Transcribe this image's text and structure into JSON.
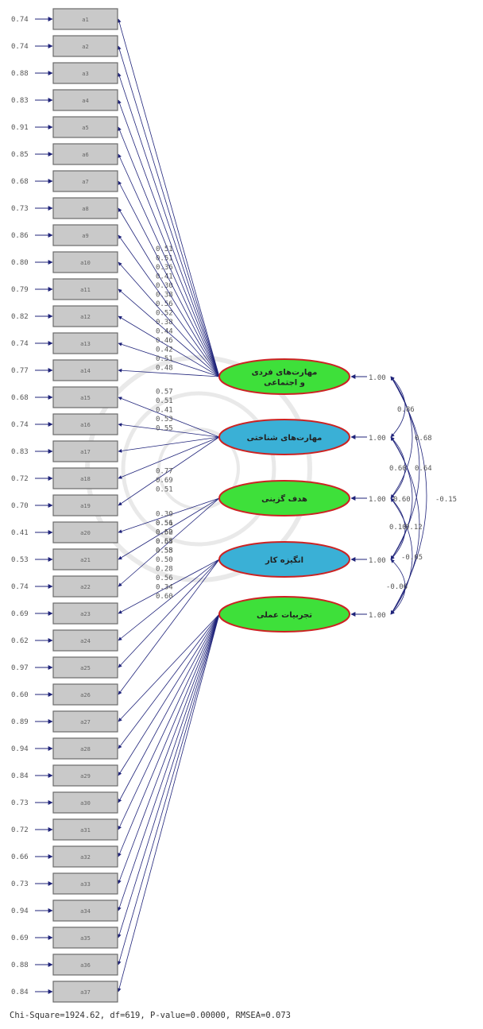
{
  "indicators": [
    {
      "label": "a1",
      "error": "0.74"
    },
    {
      "label": "a2",
      "error": "0.74"
    },
    {
      "label": "a3",
      "error": "0.88"
    },
    {
      "label": "a4",
      "error": "0.83"
    },
    {
      "label": "a5",
      "error": "0.91"
    },
    {
      "label": "a6",
      "error": "0.85"
    },
    {
      "label": "a7",
      "error": "0.68"
    },
    {
      "label": "a8",
      "error": "0.73"
    },
    {
      "label": "a9",
      "error": "0.86"
    },
    {
      "label": "a10",
      "error": "0.80"
    },
    {
      "label": "a11",
      "error": "0.79"
    },
    {
      "label": "a12",
      "error": "0.82"
    },
    {
      "label": "a13",
      "error": "0.74"
    },
    {
      "label": "a14",
      "error": "0.77"
    },
    {
      "label": "a15",
      "error": "0.68"
    },
    {
      "label": "a16",
      "error": "0.74"
    },
    {
      "label": "a17",
      "error": "0.83"
    },
    {
      "label": "a18",
      "error": "0.72"
    },
    {
      "label": "a19",
      "error": "0.70"
    },
    {
      "label": "a20",
      "error": "0.41"
    },
    {
      "label": "a21",
      "error": "0.53"
    },
    {
      "label": "a22",
      "error": "0.74"
    },
    {
      "label": "a23",
      "error": "0.69"
    },
    {
      "label": "a24",
      "error": "0.62"
    },
    {
      "label": "a25",
      "error": "0.97"
    },
    {
      "label": "a26",
      "error": "0.60"
    },
    {
      "label": "a27",
      "error": "0.89"
    },
    {
      "label": "a28",
      "error": "0.94"
    },
    {
      "label": "a29",
      "error": "0.84"
    },
    {
      "label": "a30",
      "error": "0.73"
    },
    {
      "label": "a31",
      "error": "0.72"
    },
    {
      "label": "a32",
      "error": "0.66"
    },
    {
      "label": "a33",
      "error": "0.73"
    },
    {
      "label": "a34",
      "error": "0.94"
    },
    {
      "label": "a35",
      "error": "0.69"
    },
    {
      "label": "a36",
      "error": "0.88"
    },
    {
      "label": "a37",
      "error": "0.84"
    }
  ],
  "factors": [
    {
      "name": "مهارت‌های فردی و اجتماعی",
      "lines": [
        "مهارت‌های فردی",
        "و اجتماعی"
      ],
      "color": "#3ee03a",
      "variance": "1.00",
      "items": [
        0,
        1,
        2,
        3,
        4,
        5,
        6,
        7,
        8,
        9,
        10,
        11,
        12,
        13
      ],
      "loadings": [
        "0.51",
        "0.51",
        "0.36",
        "0.41",
        "0.30",
        "0.38",
        "0.56",
        "0.52",
        "0.38",
        "0.44",
        "0.46",
        "0.42",
        "0.51",
        "0.48"
      ]
    },
    {
      "name": "مهارت‌های شناختی",
      "lines": [
        "مهارت‌های شناختی"
      ],
      "color": "#3ab0d6",
      "variance": "1.00",
      "items": [
        14,
        15,
        16,
        17,
        18
      ],
      "loadings": [
        "0.57",
        "0.51",
        "0.41",
        "0.53",
        "0.55"
      ]
    },
    {
      "name": "هدف گزینی",
      "lines": [
        "هدف گزینی"
      ],
      "color": "#3ee03a",
      "variance": "1.00",
      "items": [
        19,
        20,
        21
      ],
      "loadings": [
        "0.77",
        "0.69",
        "0.51"
      ]
    },
    {
      "name": "انگیزه کار",
      "lines": [
        "انگیزه کار"
      ],
      "color": "#3ab0d6",
      "variance": "1.00",
      "items": [
        22,
        23,
        24,
        25
      ],
      "loadings": [
        "0.56",
        "0.62",
        "0.65",
        "0.58"
      ]
    },
    {
      "name": "تجربیات عملی",
      "lines": [
        "تجربیات عملی"
      ],
      "color": "#3ee03a",
      "variance": "1.00",
      "items": [
        26,
        27,
        28,
        29,
        30,
        31,
        32,
        33,
        34,
        35,
        36
      ],
      "loadings": [
        "0.30",
        "0.51",
        "0.50",
        "0.54",
        "0.55",
        "0.50",
        "0.28",
        "0.56",
        "0.34",
        "0.60",
        ""
      ]
    }
  ],
  "correlations": [
    {
      "between": [
        0,
        1
      ],
      "value": "0.86"
    },
    {
      "between": [
        0,
        2
      ],
      "value": "0.68"
    },
    {
      "between": [
        1,
        2
      ],
      "value": "0.64"
    },
    {
      "between": [
        0,
        3
      ],
      "value": "0.60"
    },
    {
      "between": [
        1,
        3
      ],
      "value": "0.60"
    },
    {
      "between": [
        0,
        4
      ],
      "value": "-0.15"
    },
    {
      "between": [
        1,
        4
      ],
      "value": "0.12"
    },
    {
      "between": [
        2,
        4
      ],
      "value": "0.10"
    },
    {
      "between": [
        2,
        3
      ],
      "value": "-0.05"
    },
    {
      "between": [
        3,
        4
      ],
      "value": "-0.06"
    }
  ],
  "fit_stats": "Chi-Square=1924.62, df=619, P-value=0.00000, RMSEA=0.073",
  "colors": {
    "box_fill": "#c9c9c9",
    "box_stroke": "#6a6a6a",
    "arrow": "#1f237a",
    "factor_stroke": "#cc2222"
  }
}
